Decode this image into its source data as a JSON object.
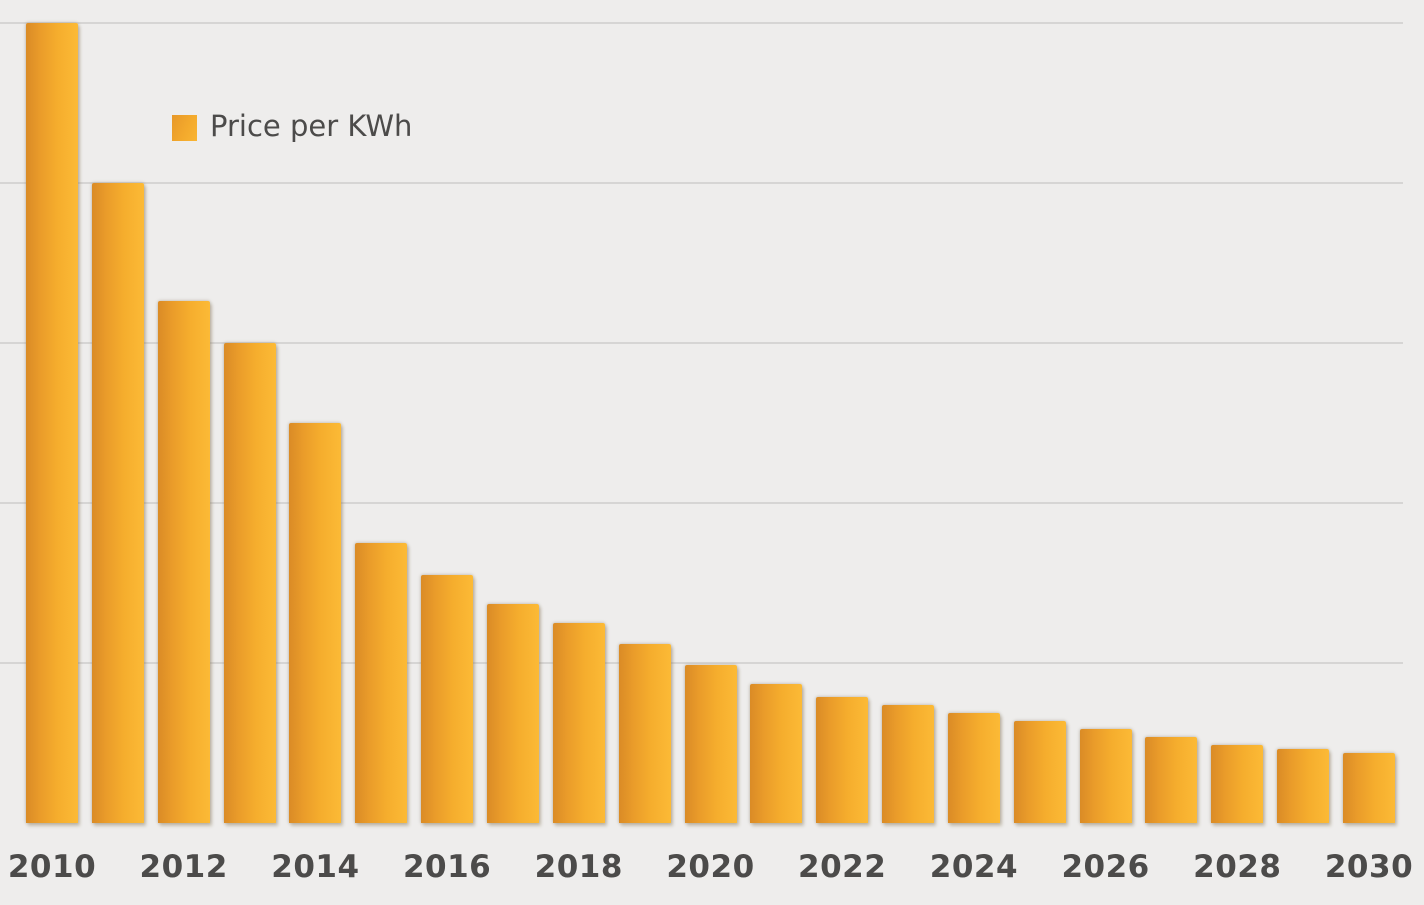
{
  "chart": {
    "legend": {
      "label": "Price per KWh"
    }
  },
  "chart_data": {
    "type": "bar",
    "title": "",
    "series": [
      {
        "name": "Price per KWh",
        "values": [
          0.5,
          0.4,
          0.326,
          0.3,
          0.25,
          0.175,
          0.155,
          0.137,
          0.125,
          0.112,
          0.099,
          0.087,
          0.079,
          0.074,
          0.069,
          0.064,
          0.059,
          0.054,
          0.049,
          0.046,
          0.044
        ]
      }
    ],
    "x": [
      2010,
      2011,
      2012,
      2013,
      2014,
      2015,
      2016,
      2017,
      2018,
      2019,
      2020,
      2021,
      2022,
      2023,
      2024,
      2025,
      2026,
      2027,
      2028,
      2029,
      2030
    ],
    "x_tick_labels": [
      "2010",
      "2012",
      "2014",
      "2016",
      "2018",
      "2020",
      "2022",
      "2024",
      "2026",
      "2028",
      "2030"
    ],
    "xlabel": "",
    "ylabel": "",
    "ylim": [
      0,
      0.515
    ],
    "gridline_interval": 0.1,
    "grid": true,
    "y_tick_labels_shown": false,
    "legend_position": "top-left",
    "colors": {
      "bar_gradient_start": "#da8b26",
      "bar_gradient_end": "#fcba36",
      "background": "#eeedec",
      "gridline": "#d6d5d4",
      "axis_text": "#4c4b4a"
    }
  }
}
